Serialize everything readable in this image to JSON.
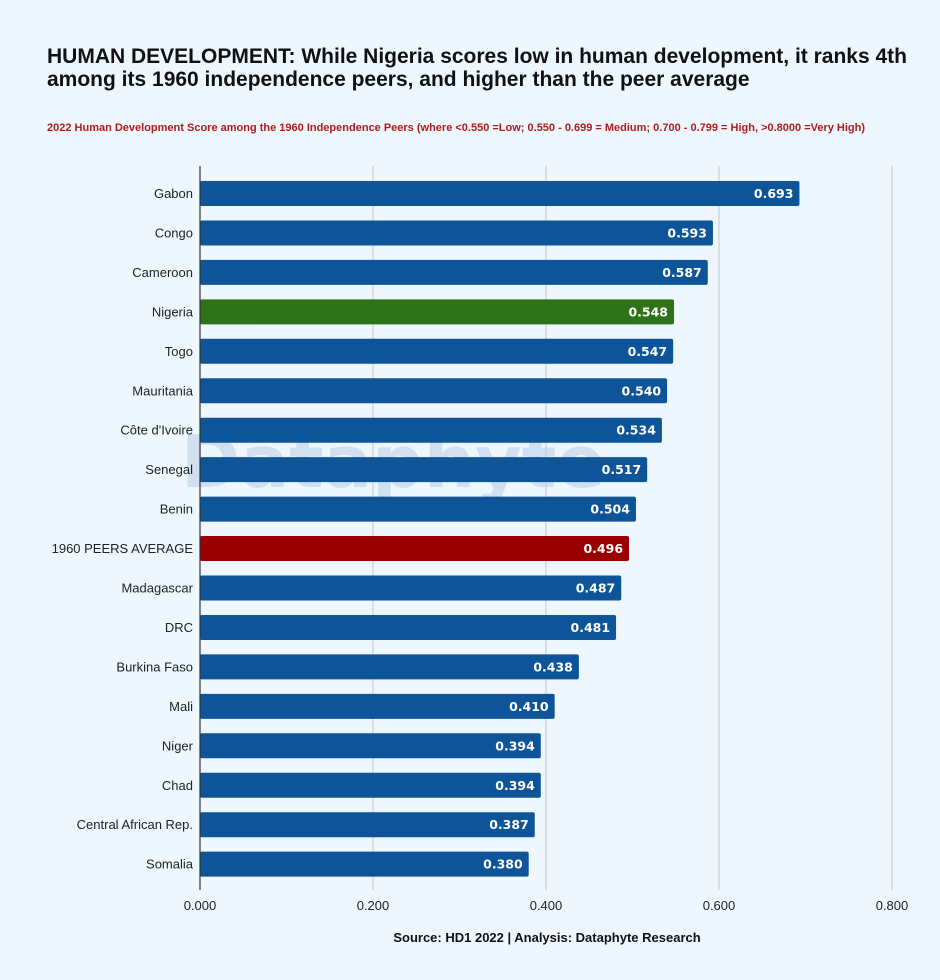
{
  "title": "HUMAN DEVELOPMENT: While Nigeria scores low in human development, it ranks 4th among its 1960 independence peers, and higher than the peer average",
  "subtitle": "2022 Human Development Score among the 1960 Independence Peers (where <0.550 =Low; 0.550 - 0.699 = Medium; 0.700 - 0.799 = High, >0.8000 =Very High)",
  "source": "Source: HD1 2022 | Analysis: Dataphyte Research",
  "watermark": "Dataphyte",
  "colors": {
    "default_bar": "#0d5499",
    "highlight_bar": "#2e7317",
    "average_bar": "#990000",
    "subtitle": "#b01c1c",
    "background": "#eff7fe",
    "grid": "#c2c8cf",
    "watermark": "#b9cfe6"
  },
  "chart_data": {
    "type": "bar",
    "orientation": "horizontal",
    "title": "HUMAN DEVELOPMENT: While Nigeria scores low in human development, it ranks 4th among its 1960 independence peers, and higher than the peer average",
    "subtitle": "2022 Human Development Score among the 1960 Independence Peers (where <0.550 =Low; 0.550 - 0.699 = Medium; 0.700 - 0.799 = High, >0.8000 =Very High)",
    "xlabel": "",
    "ylabel": "",
    "xlim": [
      0,
      0.8
    ],
    "xticks": [
      "0.000",
      "0.200",
      "0.400",
      "0.600",
      "0.800"
    ],
    "grid": "vertical",
    "categories": [
      "Gabon",
      "Congo",
      "Cameroon",
      "Nigeria",
      "Togo",
      "Mauritania",
      "Côte d'Ivoire",
      "Senegal",
      "Benin",
      "1960 PEERS AVERAGE",
      "Madagascar",
      "DRC",
      "Burkina Faso",
      "Mali",
      "Niger",
      "Chad",
      "Central African Rep.",
      "Somalia"
    ],
    "values": [
      0.693,
      0.593,
      0.587,
      0.548,
      0.547,
      0.54,
      0.534,
      0.517,
      0.504,
      0.496,
      0.487,
      0.481,
      0.438,
      0.41,
      0.394,
      0.394,
      0.387,
      0.38
    ],
    "labels": [
      "0.693",
      "0.593",
      "0.587",
      "0.548",
      "0.547",
      "0.540",
      "0.534",
      "0.517",
      "0.504",
      "0.496",
      "0.487",
      "0.481",
      "0.438",
      "0.410",
      "0.394",
      "0.394",
      "0.387",
      "0.380"
    ],
    "bar_kinds": [
      "default",
      "default",
      "default",
      "highlight",
      "default",
      "default",
      "default",
      "default",
      "default",
      "average",
      "default",
      "default",
      "default",
      "default",
      "default",
      "default",
      "default",
      "default"
    ]
  }
}
